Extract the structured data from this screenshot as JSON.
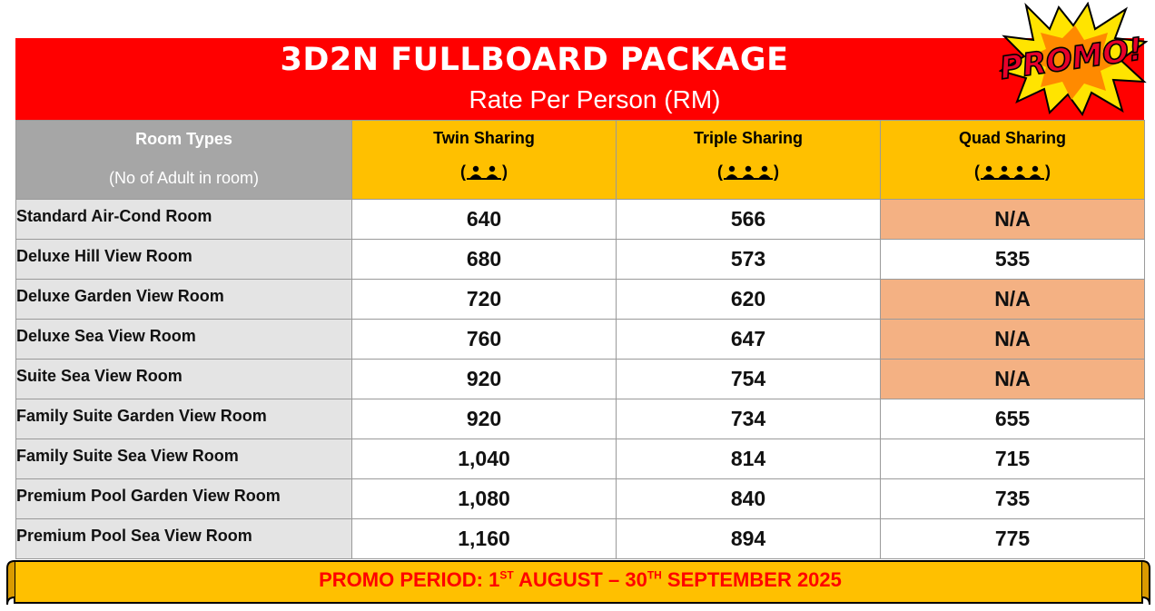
{
  "header": {
    "title": "3D2N FULLBOARD PACKAGE",
    "subtitle": "Rate Per Person (RM)",
    "badge": "PROMO!"
  },
  "table": {
    "room_header": "Room Types",
    "room_subheader": "(No of Adult in room)",
    "columns": [
      {
        "label": "Twin Sharing",
        "people": 2
      },
      {
        "label": "Triple Sharing",
        "people": 3
      },
      {
        "label": "Quad Sharing",
        "people": 4
      }
    ],
    "rows": [
      {
        "room": "Standard Air-Cond Room",
        "twin": "640",
        "triple": "566",
        "quad": "N/A"
      },
      {
        "room": "Deluxe Hill View Room",
        "twin": "680",
        "triple": "573",
        "quad": "535"
      },
      {
        "room": "Deluxe Garden View Room",
        "twin": "720",
        "triple": "620",
        "quad": "N/A"
      },
      {
        "room": "Deluxe Sea View Room",
        "twin": "760",
        "triple": "647",
        "quad": "N/A"
      },
      {
        "room": "Suite Sea View Room",
        "twin": "920",
        "triple": "754",
        "quad": "N/A"
      },
      {
        "room": "Family Suite Garden View Room",
        "twin": "920",
        "triple": "734",
        "quad": "655"
      },
      {
        "room": "Family Suite Sea View Room",
        "twin": "1,040",
        "triple": "814",
        "quad": "715"
      },
      {
        "room": "Premium Pool Garden View Room",
        "twin": "1,080",
        "triple": "840",
        "quad": "735"
      },
      {
        "room": "Premium Pool Sea View Room",
        "twin": "1,160",
        "triple": "894",
        "quad": "775"
      }
    ]
  },
  "footer": {
    "prefix": "PROMO PERIOD: 1",
    "sup1": "ST",
    "middle": " AUGUST – 30",
    "sup2": "TH",
    "suffix": " SEPTEMBER 2025"
  },
  "colors": {
    "header_red": "#ff0000",
    "column_yellow": "#ffc000",
    "na_peach": "#f4b183",
    "room_grey": "#e4e4e4",
    "footer_text_red": "#ff0000"
  }
}
